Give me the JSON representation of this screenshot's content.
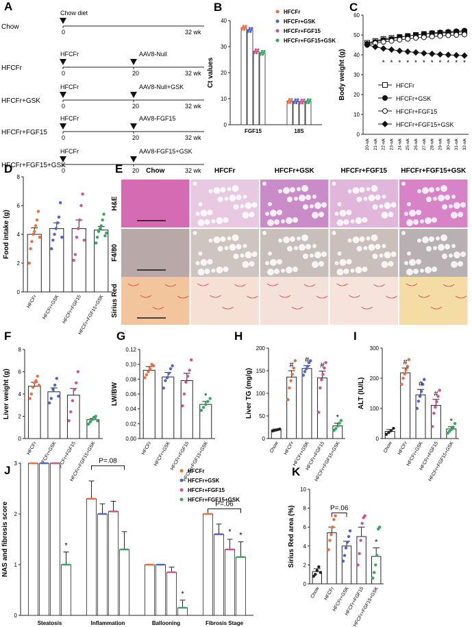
{
  "panels": {
    "A": {
      "label": "A",
      "rows": [
        {
          "group": "Chow",
          "start_label": "Chow diet",
          "mid_label": "",
          "end": "32 wk",
          "ticks": [
            "0"
          ]
        },
        {
          "group": "HFCFr",
          "start_label": "HFCFr",
          "mid_label": "AAV8-Null",
          "end": "32 wk",
          "ticks": [
            "0",
            "20"
          ]
        },
        {
          "group": "HFCFr+GSK",
          "start_label": "HFCFr",
          "mid_label": "AAV8-Null+GSK",
          "end": "32 wk",
          "ticks": [
            "0",
            "20"
          ]
        },
        {
          "group": "HFCFr+FGF15",
          "start_label": "HFCFr",
          "mid_label": "AAV8-FGF15",
          "end": "32 wk",
          "ticks": [
            "0",
            "20"
          ]
        },
        {
          "group": "HFCFr+FGF15+GSK",
          "start_label": "HFCFr",
          "mid_label": "AAV8-FGF15+GSK",
          "end": "32 wk",
          "ticks": [
            "0",
            "20"
          ]
        }
      ]
    },
    "E": {
      "label": "E",
      "columns": [
        "Chow",
        "HFCFr",
        "HFCFr+GSK",
        "HFCFr+FGF15",
        "HFCFr+FGF15+GSK"
      ],
      "rows": [
        "H&E",
        "F4/80",
        "Sirius Red"
      ]
    }
  },
  "colors": {
    "HFCFr": "#f26b3a",
    "HFCFr+GSK": "#4a63d8",
    "HFCFr+FGF15": "#d4508a",
    "HFCFr+FGF15+GSK": "#2eaa5a"
  },
  "chart_data": [
    {
      "id": "B",
      "type": "bar",
      "label": "B",
      "ylabel": "Ct values",
      "ylim": [
        0,
        40
      ],
      "yticks": [
        0,
        10,
        20,
        30,
        40
      ],
      "categories": [
        "FGF15",
        "18S"
      ],
      "legend": [
        "HFCFr",
        "HFCFr+GSK",
        "HFCFr+FGF15",
        "HFCFr+FGF15+GSK"
      ],
      "series": [
        {
          "name": "HFCFr",
          "values": [
            37.2,
            9.1
          ]
        },
        {
          "name": "HFCFr+GSK",
          "values": [
            36.4,
            9.0
          ]
        },
        {
          "name": "HFCFr+FGF15",
          "values": [
            28.2,
            8.9
          ]
        },
        {
          "name": "HFCFr+FGF15+GSK",
          "values": [
            27.6,
            9.0
          ]
        }
      ]
    },
    {
      "id": "C",
      "type": "line",
      "label": "C",
      "ylabel": "Body weight (g)",
      "ylim": [
        0,
        60
      ],
      "yticks": [
        0,
        10,
        20,
        30,
        40,
        50,
        60
      ],
      "x": [
        "20-wk",
        "21-wk",
        "22-wk",
        "23-wk",
        "24-wk",
        "25-wk",
        "26-wk",
        "27-wk",
        "28-wk",
        "29-wk",
        "30-wk",
        "31-wk",
        "32-wk"
      ],
      "series": [
        {
          "name": "HFCFr",
          "values": [
            46,
            47,
            48,
            48.5,
            49,
            49.5,
            50,
            50.5,
            50.8,
            51,
            51.2,
            51.4,
            51.6
          ]
        },
        {
          "name": "HFCFr+GSK",
          "values": [
            45.5,
            46.5,
            47.5,
            48,
            49,
            49.5,
            50,
            50.5,
            51,
            51.3,
            51.6,
            51.9,
            52.2
          ]
        },
        {
          "name": "HFCFr+FGF15",
          "values": [
            45,
            45.8,
            46.5,
            47,
            47.6,
            48,
            48.5,
            48.8,
            49.2,
            49.5,
            49.8,
            50,
            50.2
          ]
        },
        {
          "name": "HFCFr+FGF15+GSK",
          "values": [
            45,
            44,
            43.2,
            42.6,
            42,
            41.6,
            41.2,
            40.8,
            40.5,
            40.2,
            40,
            39.8,
            39.6
          ]
        }
      ],
      "annotations": [
        "*",
        "*",
        "*",
        "*",
        "*",
        "*",
        "*",
        "*",
        "*",
        "*",
        "*"
      ]
    },
    {
      "id": "D",
      "type": "bar",
      "label": "D",
      "ylabel": "Food intake (g)",
      "ylim": [
        0,
        8
      ],
      "yticks": [
        0,
        2,
        4,
        6,
        8
      ],
      "categories": [
        "HFCFr",
        "HFCFr+GSK",
        "HFCFr+FGF15",
        "HFCFr+FGF15+GSK"
      ],
      "values": [
        4.0,
        4.4,
        4.4,
        4.3
      ],
      "errors": [
        0.45,
        0.4,
        0.6,
        0.25
      ],
      "points": [
        [
          2.0,
          3.0,
          3.5,
          4.0,
          4.2,
          4.6,
          5.0,
          5.6,
          3.8
        ],
        [
          3.0,
          3.6,
          4.0,
          4.4,
          4.8,
          5.2,
          6.2,
          3.8
        ],
        [
          2.2,
          2.6,
          3.8,
          4.4,
          5.0,
          6.0,
          6.8,
          3.6
        ],
        [
          3.4,
          3.8,
          4.2,
          4.4,
          4.6,
          5.0,
          5.4,
          3.9,
          4.1
        ]
      ],
      "annotations": []
    },
    {
      "id": "F",
      "type": "bar",
      "label": "F",
      "ylabel": "Liver weight (g)",
      "ylim": [
        0,
        8
      ],
      "yticks": [
        0,
        2,
        4,
        6,
        8
      ],
      "categories": [
        "HFCFr",
        "HFCFr+GSK",
        "HFCFr+FGF15",
        "HFCFr+FGF15+GSK"
      ],
      "values": [
        4.7,
        4.2,
        3.9,
        1.7
      ],
      "errors": [
        0.35,
        0.35,
        0.6,
        0.12
      ],
      "points": [
        [
          3.6,
          4.0,
          4.6,
          5.0,
          5.2,
          5.6,
          4.8
        ],
        [
          3.2,
          3.6,
          4.4,
          4.8,
          5.4,
          3.8
        ],
        [
          1.6,
          2.4,
          3.4,
          4.4,
          5.0,
          6.0
        ],
        [
          1.3,
          1.5,
          1.7,
          1.9,
          2.0,
          1.6
        ]
      ],
      "annotations": []
    },
    {
      "id": "G",
      "type": "bar",
      "label": "G",
      "ylabel": "LW/BW",
      "ylim": [
        0,
        0.12
      ],
      "yticks": [
        0,
        0.02,
        0.04,
        0.06,
        0.08,
        0.1,
        0.12
      ],
      "ytick_labels": [
        "0.00",
        "0.02",
        "0.04",
        "0.06",
        "0.08",
        "0.10",
        "0.12"
      ],
      "categories": [
        "HFCFr",
        "HFCFr+GSK",
        "HFCFr+FGF15",
        "HFCFr+FGF15+GSK"
      ],
      "values": [
        0.092,
        0.083,
        0.078,
        0.046
      ],
      "errors": [
        0.005,
        0.006,
        0.01,
        0.004
      ],
      "points": [
        [
          0.082,
          0.086,
          0.09,
          0.094,
          0.1,
          0.098
        ],
        [
          0.068,
          0.078,
          0.082,
          0.088,
          0.094,
          0.098
        ],
        [
          0.044,
          0.06,
          0.076,
          0.084,
          0.092,
          0.106
        ],
        [
          0.038,
          0.042,
          0.046,
          0.05,
          0.054
        ]
      ],
      "annotations": [
        "",
        "",
        "",
        "*"
      ]
    },
    {
      "id": "H",
      "type": "bar",
      "label": "H",
      "ylabel": "Liver TG (mg/g)",
      "ylim": [
        0,
        200
      ],
      "yticks": [
        0,
        50,
        100,
        150,
        200
      ],
      "categories": [
        "Chow",
        "HFCFr",
        "HFCFr+GSK",
        "HFCFr+FGF15",
        "HFCFr+FGF15+GSK"
      ],
      "values": [
        19,
        136,
        155,
        134,
        28
      ],
      "errors": [
        2,
        14,
        6,
        15,
        6
      ],
      "points": [
        [
          17,
          18,
          19,
          20,
          21
        ],
        [
          86,
          112,
          128,
          142,
          156,
          172
        ],
        [
          140,
          148,
          154,
          160,
          168,
          172
        ],
        [
          58,
          112,
          130,
          142,
          156,
          168
        ],
        [
          18,
          22,
          28,
          34,
          40
        ]
      ],
      "annotations": [
        "",
        "#",
        "#",
        "#",
        "*"
      ]
    },
    {
      "id": "I",
      "type": "bar",
      "label": "I",
      "ylabel": "ALT (IU/L)",
      "ylim": [
        0,
        300
      ],
      "yticks": [
        0,
        100,
        200,
        300
      ],
      "categories": [
        "Chow",
        "HFCFr",
        "HFCFr+GSK",
        "HFCFr+FGF15",
        "HFCFr+FGF15+GSK"
      ],
      "values": [
        24,
        218,
        145,
        110,
        32
      ],
      "errors": [
        6,
        16,
        18,
        20,
        7
      ],
      "points": [
        [
          14,
          20,
          26,
          34
        ],
        [
          180,
          200,
          214,
          228,
          240,
          262
        ],
        [
          100,
          124,
          140,
          156,
          180,
          196
        ],
        [
          40,
          84,
          104,
          122,
          140,
          160
        ],
        [
          18,
          24,
          30,
          38,
          50
        ]
      ],
      "annotations": [
        "",
        "#",
        "#",
        "#",
        "*"
      ]
    },
    {
      "id": "J",
      "type": "bar",
      "label": "J",
      "ylabel": "NAS and fibrosis score",
      "ylim": [
        0,
        3
      ],
      "yticks": [
        0,
        1,
        2,
        3
      ],
      "categories": [
        "Steatosis",
        "Inflammation",
        "Ballooning",
        "Fibrosis Stage"
      ],
      "legend": [
        "HFCFr",
        "HFCFr+GSK",
        "HFCFr+FGF15",
        "HFCFr+FGF15+GSK"
      ],
      "series": [
        {
          "name": "HFCFr",
          "values": [
            3.0,
            2.3,
            1.0,
            2.0
          ],
          "errors": [
            0,
            0.35,
            0,
            0
          ]
        },
        {
          "name": "HFCFr+GSK",
          "values": [
            3.0,
            2.0,
            1.0,
            1.6
          ],
          "errors": [
            0,
            0.2,
            0,
            0.2
          ]
        },
        {
          "name": "HFCFr+FGF15",
          "values": [
            3.0,
            2.05,
            0.85,
            1.3
          ],
          "errors": [
            0,
            0.2,
            0.1,
            0.2
          ]
        },
        {
          "name": "HFCFr+FGF15+GSK",
          "values": [
            1.0,
            1.3,
            0.15,
            1.15
          ],
          "errors": [
            0.25,
            0.35,
            0.15,
            0.3
          ]
        }
      ],
      "brackets": [
        {
          "text": "P=.08",
          "from": 1
        },
        {
          "text": "P=.06",
          "from": 3
        }
      ],
      "annotations": [
        "*",
        "",
        "*",
        "*"
      ]
    },
    {
      "id": "K",
      "type": "bar",
      "label": "K",
      "ylabel": "Sirius Red area (%)",
      "ylim": [
        0,
        10
      ],
      "yticks": [
        0,
        2,
        4,
        6,
        8,
        10
      ],
      "categories": [
        "Chow",
        "HFCFr",
        "HFCFr+GSK",
        "HFCFr+FGF15",
        "HFCFr+FGF15+GSK"
      ],
      "values": [
        1.3,
        5.4,
        4.0,
        5.0,
        2.9
      ],
      "errors": [
        0.3,
        0.6,
        0.5,
        1.0,
        0.9
      ],
      "points": [
        [
          0.8,
          1.0,
          1.4,
          1.8,
          1.2
        ],
        [
          3.6,
          4.6,
          5.2,
          6.0,
          6.8,
          7.2
        ],
        [
          2.4,
          3.0,
          3.8,
          4.4,
          5.0,
          5.6
        ],
        [
          2.0,
          3.2,
          4.6,
          6.4,
          7.0,
          7.2
        ],
        [
          0.6,
          1.2,
          2.0,
          3.0,
          5.8,
          6.0
        ]
      ],
      "brackets": [
        {
          "text": "P=.06"
        }
      ],
      "annotations": [
        "",
        "",
        "",
        "",
        "*"
      ]
    }
  ]
}
